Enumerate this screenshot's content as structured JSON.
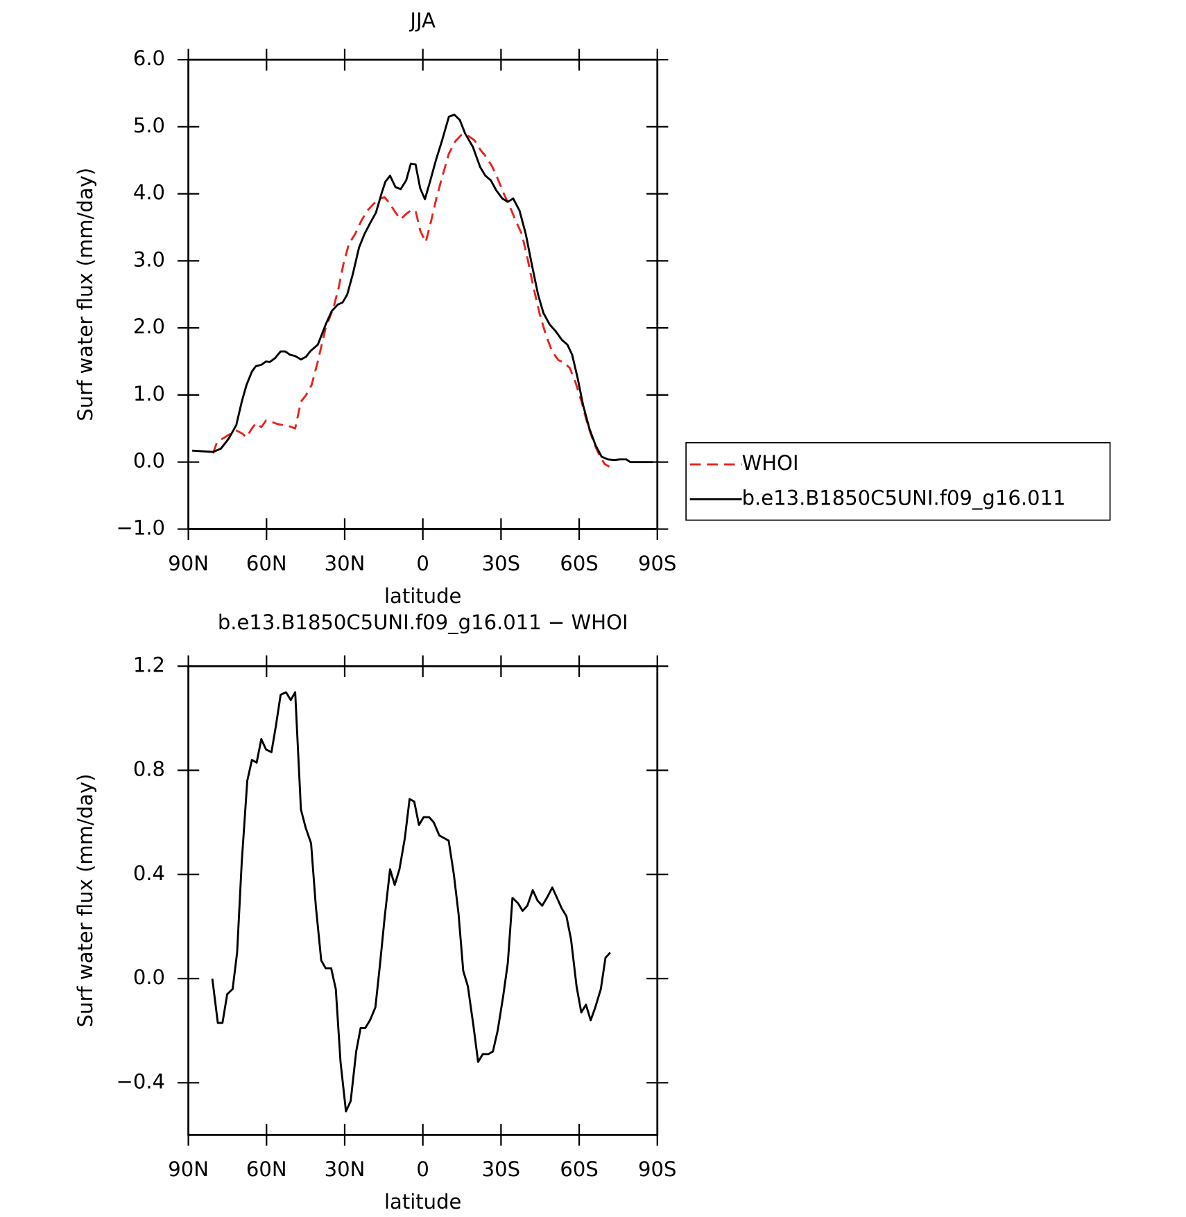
{
  "chart_data": [
    {
      "type": "line",
      "title": "JJA",
      "x_label": "latitude",
      "y_label": "Surf water flux (mm/day)",
      "xlim": [
        90,
        -90
      ],
      "xticks": [
        {
          "value": 90,
          "label": "90N"
        },
        {
          "value": 60,
          "label": "60N"
        },
        {
          "value": 30,
          "label": "30N"
        },
        0,
        {
          "value": -30,
          "label": "30S"
        },
        {
          "value": -60,
          "label": "60S"
        },
        {
          "value": -90,
          "label": "90S"
        }
      ],
      "ylim": [
        -1,
        6
      ],
      "yticks": [
        {
          "value": -1,
          "label": "−1.0"
        },
        {
          "value": 0,
          "label": "0.0"
        },
        {
          "value": 1,
          "label": "1.0"
        },
        {
          "value": 2,
          "label": "2.0"
        },
        {
          "value": 3,
          "label": "3.0"
        },
        {
          "value": 4,
          "label": "4.0"
        },
        {
          "value": 5,
          "label": "5.0"
        },
        {
          "value": 6,
          "label": "6.0"
        }
      ],
      "legend": "right",
      "series": [
        {
          "name": "WHOI",
          "color": "#e8231e",
          "dashed": true,
          "x": [
            80.5,
            79,
            76,
            73.9,
            71.6,
            69.5,
            67.7,
            65.6,
            64.1,
            62,
            60.2,
            58.1,
            56,
            53.7,
            51,
            49,
            46.8,
            44.8,
            42.7,
            40.3,
            37.3,
            34.3,
            32.3,
            30.5,
            28.4,
            26,
            23.6,
            21.3,
            18.9,
            16.5,
            14.7,
            12.6,
            10.5,
            8.5,
            6.4,
            4.6,
            2.8,
            1,
            -1.1,
            -3.2,
            -5.3,
            -7.4,
            -10,
            -12.4,
            -14.8,
            -17.2,
            -19.8,
            -22.2,
            -24.3,
            -26.7,
            -29,
            -31.1,
            -33.5,
            -35.6,
            -38,
            -40.1,
            -42.5,
            -44.9,
            -47.2,
            -49.6,
            -52,
            -54.4,
            -56.4,
            -58.5,
            -60.9,
            -63.3,
            -65.7,
            -68,
            -69.8,
            -71.6
          ],
          "values": [
            0.13,
            0.3,
            0.37,
            0.42,
            0.47,
            0.43,
            0.37,
            0.5,
            0.58,
            0.52,
            0.62,
            0.6,
            0.57,
            0.55,
            0.53,
            0.5,
            0.9,
            1.0,
            1.15,
            1.5,
            2.0,
            2.3,
            2.6,
            2.95,
            3.25,
            3.4,
            3.6,
            3.75,
            3.85,
            3.93,
            3.95,
            3.85,
            3.72,
            3.62,
            3.7,
            3.75,
            3.75,
            3.45,
            3.28,
            3.6,
            3.95,
            4.25,
            4.6,
            4.78,
            4.88,
            4.87,
            4.8,
            4.65,
            4.55,
            4.4,
            4.2,
            4.0,
            3.8,
            3.6,
            3.4,
            3.05,
            2.6,
            2.2,
            1.9,
            1.65,
            1.52,
            1.48,
            1.4,
            1.2,
            0.9,
            0.55,
            0.28,
            0.08,
            -0.03,
            -0.07
          ]
        },
        {
          "name": "b.e13.B1850C5UNI.f09_g16.011",
          "color": "#000000",
          "dashed": false,
          "x": [
            88.5,
            80.5,
            77.5,
            74.5,
            71.6,
            69.5,
            67.7,
            65.6,
            64.1,
            62,
            60.2,
            58.8,
            56.7,
            54.6,
            52.8,
            51,
            49,
            46.8,
            44.8,
            43.3,
            40.3,
            37.3,
            35,
            32.6,
            30.8,
            29,
            26.9,
            24.5,
            22.4,
            20.4,
            18,
            15.9,
            14.4,
            12.6,
            10.5,
            8.5,
            6.4,
            4.6,
            2.8,
            1,
            -0.8,
            -2.9,
            -5,
            -7.4,
            -10,
            -12.1,
            -14.2,
            -16.2,
            -19.2,
            -22,
            -24,
            -26.1,
            -28.2,
            -30.5,
            -32.6,
            -34.7,
            -37.1,
            -39.5,
            -41.8,
            -44.2,
            -46.3,
            -48.7,
            -51,
            -53.4,
            -55.5,
            -57.3,
            -59.4,
            -61.5,
            -63.9,
            -66.3,
            -68.6,
            -71,
            -73.4,
            -75.7,
            -78.1,
            -79.6,
            -83.2,
            -88.3
          ],
          "values": [
            0.17,
            0.15,
            0.2,
            0.35,
            0.55,
            0.9,
            1.15,
            1.35,
            1.43,
            1.45,
            1.5,
            1.49,
            1.55,
            1.65,
            1.65,
            1.6,
            1.58,
            1.53,
            1.57,
            1.65,
            1.75,
            2.05,
            2.25,
            2.35,
            2.38,
            2.5,
            2.8,
            3.2,
            3.4,
            3.55,
            3.72,
            4.0,
            4.18,
            4.27,
            4.1,
            4.07,
            4.2,
            4.45,
            4.44,
            4.08,
            3.92,
            4.2,
            4.5,
            4.8,
            5.15,
            5.18,
            5.1,
            4.9,
            4.7,
            4.4,
            4.27,
            4.2,
            4.05,
            3.93,
            3.88,
            3.93,
            3.75,
            3.4,
            2.95,
            2.5,
            2.22,
            2.05,
            1.95,
            1.82,
            1.75,
            1.6,
            1.25,
            0.85,
            0.5,
            0.25,
            0.08,
            0.04,
            0.03,
            0.04,
            0.04,
            0.0,
            0.0,
            0.0
          ]
        }
      ]
    },
    {
      "type": "line",
      "title": "b.e13.B1850C5UNI.f09_g16.011 − WHOI",
      "x_label": "latitude",
      "y_label": "Surf water flux (mm/day)",
      "xlim": [
        90,
        -90
      ],
      "xticks": [
        {
          "value": 90,
          "label": "90N"
        },
        {
          "value": 60,
          "label": "60N"
        },
        {
          "value": 30,
          "label": "30N"
        },
        0,
        {
          "value": -30,
          "label": "30S"
        },
        {
          "value": -60,
          "label": "60S"
        },
        {
          "value": -90,
          "label": "90S"
        }
      ],
      "ylim": [
        -0.6,
        1.2
      ],
      "yticks": [
        {
          "value": -0.4,
          "label": "−0.4"
        },
        {
          "value": 0,
          "label": "0.0"
        },
        0.4,
        0.8,
        1.2
      ],
      "series": [
        {
          "color": "#000000",
          "dashed": false,
          "x": [
            80.8,
            78.7,
            76.9,
            75.1,
            73,
            71.3,
            69.5,
            67.4,
            65.6,
            63.8,
            62,
            60.2,
            58.1,
            56.4,
            54.6,
            52.5,
            50.7,
            49,
            46.8,
            45,
            42.9,
            41.1,
            39,
            37.3,
            35.2,
            33.4,
            31.6,
            29.5,
            27.7,
            25.6,
            23.9,
            22.1,
            20.3,
            18.2,
            16.4,
            14.6,
            12.6,
            10.8,
            9,
            6.9,
            5.1,
            3.3,
            1.5,
            -0.3,
            -2.4,
            -4.2,
            -6.3,
            -8.1,
            -9.9,
            -11.9,
            -13.7,
            -15.5,
            -17.3,
            -19.4,
            -21.2,
            -23,
            -25.1,
            -26.9,
            -28.7,
            -30.8,
            -32.6,
            -34.4,
            -36.5,
            -38.3,
            -40.1,
            -42.2,
            -44,
            -45.8,
            -47.6,
            -49.7,
            -51.5,
            -53.3,
            -55.1,
            -56.9,
            -59,
            -60.8,
            -62.6,
            -64.4,
            -66.2,
            -68.3,
            -70.1,
            -71.9
          ],
          "values": [
            0.0,
            -0.17,
            -0.17,
            -0.06,
            -0.04,
            0.1,
            0.45,
            0.76,
            0.84,
            0.83,
            0.92,
            0.88,
            0.87,
            0.97,
            1.09,
            1.1,
            1.07,
            1.1,
            0.65,
            0.58,
            0.52,
            0.28,
            0.07,
            0.04,
            0.04,
            -0.04,
            -0.32,
            -0.51,
            -0.47,
            -0.28,
            -0.19,
            -0.19,
            -0.16,
            -0.11,
            0.06,
            0.24,
            0.42,
            0.36,
            0.42,
            0.54,
            0.69,
            0.68,
            0.59,
            0.62,
            0.62,
            0.6,
            0.55,
            0.54,
            0.53,
            0.4,
            0.25,
            0.03,
            -0.03,
            -0.18,
            -0.32,
            -0.29,
            -0.29,
            -0.28,
            -0.2,
            -0.07,
            0.06,
            0.31,
            0.29,
            0.26,
            0.28,
            0.34,
            0.3,
            0.28,
            0.31,
            0.35,
            0.31,
            0.27,
            0.24,
            0.15,
            -0.03,
            -0.13,
            -0.1,
            -0.16,
            -0.11,
            -0.04,
            0.08,
            0.1
          ]
        }
      ]
    }
  ]
}
